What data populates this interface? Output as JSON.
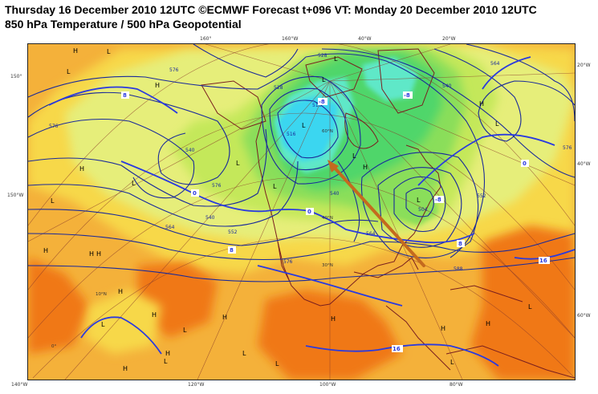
{
  "header": {
    "title_line1": "Thursday 16 December 2010 12UTC ©ECMWF Forecast t+096 VT: Monday 20 December 2010 12UTC",
    "title_line2": "850 hPa Temperature / 500 hPa Geopotential"
  },
  "frame_labels": {
    "top": [
      "160°",
      "160°W",
      "40°W",
      "20°W"
    ],
    "left": [
      "150°",
      "150°W"
    ],
    "right": [
      "20°W",
      "40°W",
      "60°W"
    ],
    "bottom": [
      "140°W",
      "120°W",
      "100°W",
      "80°W"
    ]
  },
  "grid_labels": [
    "60°N",
    "40°N",
    "30°N",
    "10°N",
    "0°"
  ],
  "geopotential_labels": [
    "576",
    "576",
    "564",
    "552",
    "540",
    "576",
    "516",
    "528",
    "540",
    "564",
    "576",
    "588",
    "552",
    "564",
    "540",
    "528",
    "516",
    "504",
    "540",
    "576"
  ],
  "temperature_labels": [
    "8",
    "0",
    "0",
    "-8",
    "-8",
    "8",
    "0",
    "-8",
    "16",
    "16",
    "8"
  ],
  "pressure_centers": {
    "lows": [
      "L",
      "L",
      "L",
      "L",
      "L",
      "L",
      "L",
      "L",
      "L",
      "L",
      "L",
      "L",
      "L",
      "L",
      "L",
      "L",
      "L",
      "L",
      "L"
    ],
    "highs": [
      "H",
      "H",
      "H",
      "H",
      "H",
      "H",
      "H",
      "H",
      "H",
      "H",
      "H",
      "H",
      "H",
      "H",
      "H",
      "H"
    ]
  },
  "colors": {
    "warm_deep": "#f07818",
    "warm": "#f4b13a",
    "mild": "#f7d84a",
    "pale": "#e6ee7a",
    "yellow_green": "#c4e85a",
    "green": "#8ade5a",
    "bright_green": "#4fd66a",
    "aqua": "#5ee8c8",
    "cyan": "#3ad6f0",
    "coastline": "#7a1f1f",
    "contour": "#1a2a9a",
    "arrow": "#c46a1e"
  }
}
